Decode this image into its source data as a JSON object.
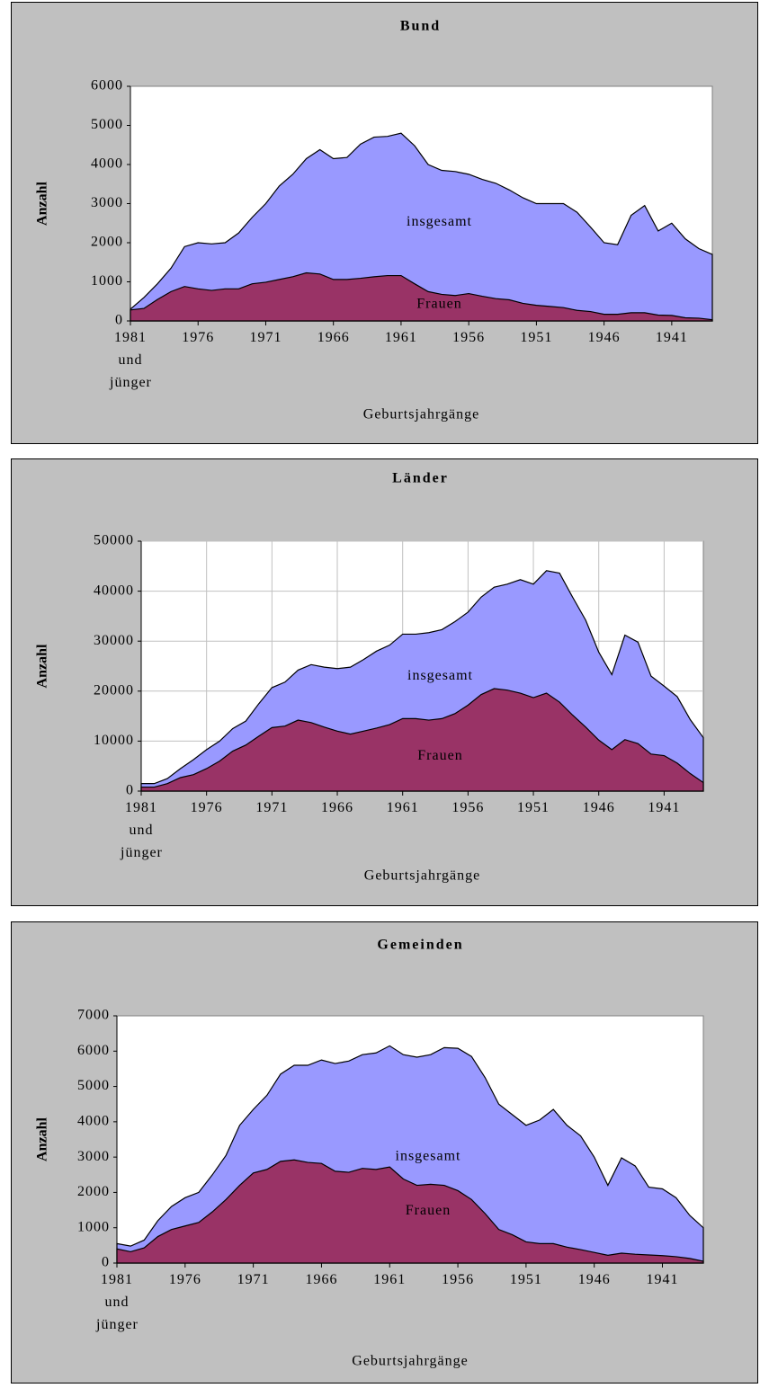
{
  "chart_data": [
    {
      "type": "area",
      "title": "Bund",
      "y_label": "Anzahl",
      "x_label": "Geburtsjahrgänge",
      "categories": [
        "1981 und jünger",
        null,
        null,
        null,
        null,
        "1976",
        null,
        null,
        null,
        null,
        "1971",
        null,
        null,
        null,
        null,
        "1966",
        null,
        null,
        null,
        null,
        "1961",
        null,
        null,
        null,
        null,
        "1956",
        null,
        null,
        null,
        null,
        "1951",
        null,
        null,
        null,
        null,
        "1946",
        null,
        null,
        null,
        null,
        "1941",
        null,
        null,
        null
      ],
      "ylim": [
        0,
        6000
      ],
      "yticks": [
        0,
        1000,
        2000,
        3000,
        4000,
        5000,
        6000
      ],
      "grid": false,
      "series": [
        {
          "name": "insgesamt",
          "color": "#9999ff",
          "values": [
            300,
            600,
            950,
            1350,
            1900,
            2000,
            1970,
            2000,
            2250,
            2650,
            3000,
            3450,
            3750,
            4150,
            4380,
            4150,
            4180,
            4520,
            4700,
            4720,
            4800,
            4480,
            4000,
            3850,
            3820,
            3750,
            3620,
            3520,
            3350,
            3150,
            3000,
            3000,
            3000,
            2780,
            2400,
            2000,
            1950,
            2700,
            2950,
            2300,
            2500,
            2100,
            1850,
            1700
          ]
        },
        {
          "name": "Frauen",
          "color": "#993366",
          "values": [
            280,
            320,
            550,
            750,
            880,
            820,
            780,
            820,
            820,
            950,
            990,
            1060,
            1130,
            1230,
            1200,
            1060,
            1060,
            1090,
            1130,
            1160,
            1160,
            950,
            750,
            680,
            650,
            700,
            630,
            570,
            540,
            450,
            400,
            370,
            340,
            270,
            240,
            170,
            170,
            210,
            210,
            150,
            140,
            80,
            70,
            30
          ]
        }
      ]
    },
    {
      "type": "area",
      "title": "Länder",
      "y_label": "Anzahl",
      "x_label": "Geburtsjahrgänge",
      "categories": [
        "1981 und jünger",
        null,
        null,
        null,
        null,
        "1976",
        null,
        null,
        null,
        null,
        "1971",
        null,
        null,
        null,
        null,
        "1966",
        null,
        null,
        null,
        null,
        "1961",
        null,
        null,
        null,
        null,
        "1956",
        null,
        null,
        null,
        null,
        "1951",
        null,
        null,
        null,
        null,
        "1946",
        null,
        null,
        null,
        null,
        "1941",
        null,
        null,
        null
      ],
      "ylim": [
        0,
        50000
      ],
      "yticks": [
        0,
        10000,
        20000,
        30000,
        40000,
        50000
      ],
      "grid": true,
      "series": [
        {
          "name": "insgesamt",
          "color": "#9999ff",
          "values": [
            1500,
            1500,
            2500,
            4500,
            6300,
            8300,
            10000,
            12500,
            14000,
            17500,
            20700,
            21800,
            24200,
            25300,
            24800,
            24500,
            24800,
            26300,
            28000,
            29200,
            31400,
            31400,
            31700,
            32300,
            33900,
            35800,
            38800,
            40800,
            41400,
            42300,
            41400,
            44100,
            43600,
            38800,
            34200,
            27800,
            23300,
            31200,
            29800,
            23000,
            21000,
            18900,
            14300,
            10700
          ]
        },
        {
          "name": "Frauen",
          "color": "#993366",
          "values": [
            800,
            800,
            1500,
            2700,
            3300,
            4500,
            6000,
            8000,
            9200,
            11000,
            12700,
            13000,
            14200,
            13700,
            12800,
            12000,
            11400,
            12000,
            12600,
            13300,
            14500,
            14500,
            14200,
            14500,
            15500,
            17200,
            19300,
            20500,
            20200,
            19600,
            18700,
            19600,
            17800,
            15200,
            12800,
            10200,
            8300,
            10300,
            9500,
            7400,
            7100,
            5600,
            3500,
            1700
          ]
        }
      ]
    },
    {
      "type": "area",
      "title": "Gemeinden",
      "y_label": "Anzahl",
      "x_label": "Geburtsjahrgänge",
      "categories": [
        "1981 und jünger",
        null,
        null,
        null,
        null,
        "1976",
        null,
        null,
        null,
        null,
        "1971",
        null,
        null,
        null,
        null,
        "1966",
        null,
        null,
        null,
        null,
        "1961",
        null,
        null,
        null,
        null,
        "1956",
        null,
        null,
        null,
        null,
        "1951",
        null,
        null,
        null,
        null,
        "1946",
        null,
        null,
        null,
        null,
        "1941",
        null,
        null,
        null
      ],
      "ylim": [
        0,
        7000
      ],
      "yticks": [
        0,
        1000,
        2000,
        3000,
        4000,
        5000,
        6000,
        7000
      ],
      "grid": false,
      "series": [
        {
          "name": "insgesamt",
          "color": "#9999ff",
          "values": [
            550,
            480,
            650,
            1200,
            1600,
            1850,
            2000,
            2500,
            3050,
            3900,
            4350,
            4750,
            5350,
            5600,
            5600,
            5750,
            5650,
            5720,
            5900,
            5950,
            6150,
            5900,
            5830,
            5900,
            6100,
            6080,
            5850,
            5250,
            4500,
            4200,
            3900,
            4050,
            4350,
            3900,
            3600,
            3000,
            2200,
            2980,
            2750,
            2150,
            2100,
            1850,
            1350,
            1000
          ]
        },
        {
          "name": "Frauen",
          "color": "#993366",
          "values": [
            400,
            320,
            430,
            750,
            950,
            1050,
            1150,
            1450,
            1800,
            2200,
            2550,
            2650,
            2880,
            2920,
            2850,
            2820,
            2600,
            2570,
            2680,
            2650,
            2720,
            2380,
            2200,
            2230,
            2200,
            2050,
            1800,
            1400,
            950,
            800,
            600,
            550,
            550,
            450,
            380,
            300,
            220,
            280,
            250,
            230,
            210,
            180,
            130,
            50
          ]
        }
      ]
    }
  ]
}
